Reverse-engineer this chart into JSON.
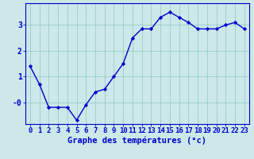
{
  "x": [
    0,
    1,
    2,
    3,
    4,
    5,
    6,
    7,
    8,
    9,
    10,
    11,
    12,
    13,
    14,
    15,
    16,
    17,
    18,
    19,
    20,
    21,
    22,
    23
  ],
  "y": [
    1.4,
    0.7,
    -0.2,
    -0.2,
    -0.2,
    -0.7,
    -0.1,
    0.4,
    0.5,
    1.0,
    1.5,
    2.5,
    2.85,
    2.85,
    3.3,
    3.5,
    3.3,
    3.1,
    2.85,
    2.85,
    2.85,
    3.0,
    3.1,
    2.85
  ],
  "line_color": "#0000cc",
  "marker": "D",
  "marker_size": 2.2,
  "bg_color": "#cce8e8",
  "grid_color": "#99cccc",
  "axis_color": "#0000cc",
  "xlabel": "Graphe des températures (°c)",
  "xlabel_fontsize": 7.5,
  "tick_fontsize": 6.5,
  "yticks": [
    0,
    1,
    2,
    3
  ],
  "ytick_labels": [
    "-0",
    "1",
    "2",
    "3"
  ],
  "ylim": [
    -0.85,
    3.85
  ],
  "xlim": [
    -0.5,
    23.5
  ],
  "linewidth": 1.0
}
